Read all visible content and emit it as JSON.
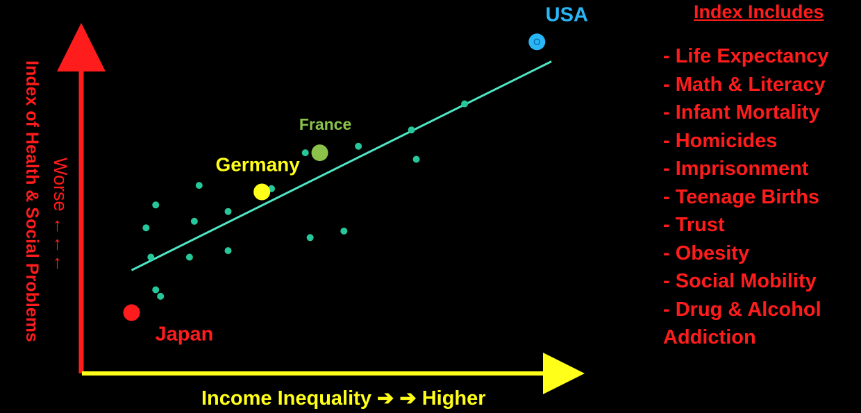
{
  "chart_data": {
    "type": "scatter",
    "xlabel": "Income Inequality  ➔ ➔ Higher",
    "ylabel": "Index of Health & Social Problems",
    "ylabel_secondary": "Worse  ←←←",
    "x_range": [
      0,
      100
    ],
    "y_range": [
      0,
      100
    ],
    "grid": false,
    "trendline": {
      "start": [
        10,
        31
      ],
      "end": [
        97,
        95
      ]
    },
    "labeled_points": [
      {
        "name": "Japan",
        "x": 10,
        "y": 18,
        "color": "#ff1c1c",
        "label_color": "#ff1c1c"
      },
      {
        "name": "Germany",
        "x": 37,
        "y": 55,
        "color": "#ffff1a",
        "label_color": "#ffff1a"
      },
      {
        "name": "France",
        "x": 49,
        "y": 67,
        "color": "#8bc34a",
        "label_color": "#8bc34a"
      },
      {
        "name": "USA",
        "x": 94,
        "y": 101,
        "color": "#29b6f6",
        "label_color": "#29b6f6"
      }
    ],
    "points": [
      {
        "x": 15,
        "y": 51
      },
      {
        "x": 13,
        "y": 44
      },
      {
        "x": 14,
        "y": 35
      },
      {
        "x": 15,
        "y": 25
      },
      {
        "x": 16,
        "y": 23
      },
      {
        "x": 24,
        "y": 57
      },
      {
        "x": 23,
        "y": 46
      },
      {
        "x": 22,
        "y": 35
      },
      {
        "x": 30,
        "y": 49
      },
      {
        "x": 30,
        "y": 37
      },
      {
        "x": 39,
        "y": 56
      },
      {
        "x": 46,
        "y": 67
      },
      {
        "x": 47,
        "y": 41
      },
      {
        "x": 54,
        "y": 43
      },
      {
        "x": 57,
        "y": 69
      },
      {
        "x": 68,
        "y": 74
      },
      {
        "x": 69,
        "y": 65
      },
      {
        "x": 79,
        "y": 82
      }
    ],
    "colors": {
      "axis_y": "#ff1c1c",
      "axis_x": "#ffff1a",
      "trend": "#4ee6c4",
      "dots": "#26c79a"
    }
  },
  "panel": {
    "title": "Index Includes",
    "items": [
      "- Life Expectancy",
      "- Math & Literacy",
      "- Infant Mortality",
      "- Homicides",
      "- Imprisonment",
      "- Teenage Births",
      "- Trust",
      "- Obesity",
      "- Social Mobility",
      "- Drug & Alcohol",
      "Addiction"
    ]
  }
}
